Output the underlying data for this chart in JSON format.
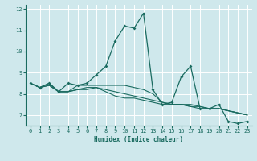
{
  "title": "",
  "xlabel": "Humidex (Indice chaleur)",
  "xlim": [
    -0.5,
    23.5
  ],
  "ylim": [
    6.5,
    12.2
  ],
  "yticks": [
    7,
    8,
    9,
    10,
    11,
    12
  ],
  "xticks": [
    0,
    1,
    2,
    3,
    4,
    5,
    6,
    7,
    8,
    9,
    10,
    11,
    12,
    13,
    14,
    15,
    16,
    17,
    18,
    19,
    20,
    21,
    22,
    23
  ],
  "bg_color": "#cfe8ec",
  "grid_color": "#ffffff",
  "line_color": "#1a6b60",
  "series": [
    [
      8.5,
      8.3,
      8.5,
      8.1,
      8.5,
      8.4,
      8.5,
      8.9,
      9.3,
      10.5,
      11.2,
      11.1,
      11.8,
      8.2,
      7.5,
      7.6,
      8.8,
      9.3,
      7.3,
      7.3,
      7.5,
      6.7,
      6.6,
      6.7
    ],
    [
      8.5,
      8.3,
      8.5,
      8.1,
      8.1,
      8.4,
      8.4,
      8.4,
      8.4,
      8.4,
      8.4,
      8.3,
      8.2,
      8.0,
      7.6,
      7.5,
      7.5,
      7.5,
      7.4,
      7.3,
      7.3,
      7.2,
      7.1,
      7.0
    ],
    [
      8.5,
      8.3,
      8.4,
      8.1,
      8.1,
      8.2,
      8.3,
      8.3,
      8.2,
      8.1,
      8.0,
      7.9,
      7.8,
      7.7,
      7.6,
      7.5,
      7.5,
      7.4,
      7.4,
      7.3,
      7.3,
      7.2,
      7.1,
      7.0
    ],
    [
      8.5,
      8.3,
      8.4,
      8.1,
      8.1,
      8.2,
      8.2,
      8.3,
      8.1,
      7.9,
      7.8,
      7.8,
      7.7,
      7.6,
      7.5,
      7.5,
      7.5,
      7.4,
      7.3,
      7.3,
      7.3,
      7.2,
      7.1,
      7.0
    ]
  ]
}
